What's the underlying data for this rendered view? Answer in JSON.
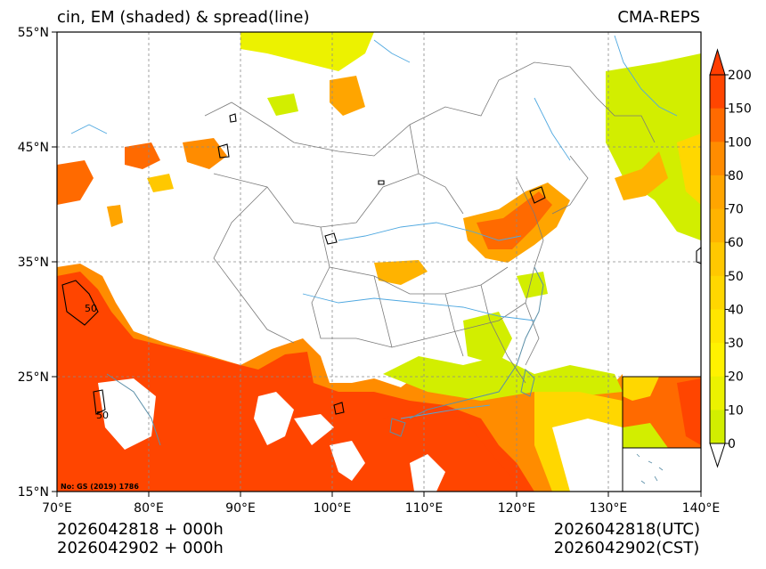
{
  "header": {
    "title_left": "cin, EM (shaded) & spread(line)",
    "title_right": "CMA-REPS"
  },
  "map": {
    "lat_labels": [
      "55°N",
      "45°N",
      "35°N",
      "25°N",
      "15°N"
    ],
    "lon_labels": [
      "70°E",
      "80°E",
      "90°E",
      "100°E",
      "110°E",
      "120°E",
      "130°E",
      "140°E"
    ],
    "lat_range": [
      15,
      55
    ],
    "lon_range": [
      70,
      140
    ],
    "map_number": "No: GS (2019) 1786",
    "spread_contour_labels": [
      "50",
      "50"
    ]
  },
  "colorbar": {
    "levels": [
      "200",
      "150",
      "100",
      "80",
      "70",
      "60",
      "50",
      "40",
      "30",
      "20",
      "10",
      "0"
    ],
    "colors": [
      "#ff4500",
      "#ff6a00",
      "#ff8c00",
      "#ffa500",
      "#ffb300",
      "#ffc800",
      "#ffd700",
      "#ffe600",
      "#fff200",
      "#ecf200",
      "#d2ee00"
    ],
    "over_color": "#ff3d00",
    "under_color": "#ffffff"
  },
  "footer": {
    "left_line1": "2026042818  +  000h",
    "left_line2": "2026042902  +  000h",
    "right_line1": "2026042818(UTC)",
    "right_line2": "2026042902(CST)"
  }
}
